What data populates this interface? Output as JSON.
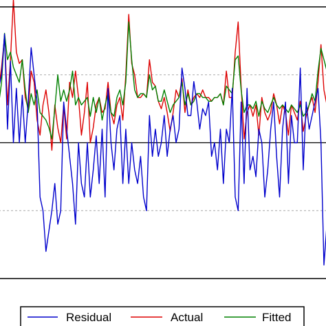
{
  "chart_data": {
    "type": "line",
    "title": "",
    "xlabel": "",
    "ylabel": "",
    "grid": false,
    "legend_position": "bottom",
    "zero_line": true,
    "reference_lines": true,
    "ylim_top": [
      -5.2,
      2.0
    ],
    "ylim_bottom": [
      -2.0,
      2.0
    ],
    "colors": {
      "residual": "#0000cc",
      "actual": "#dd0000",
      "fitted": "#008000"
    },
    "series": [
      {
        "name": "Actual",
        "panel": "top",
        "values": [
          -0.2,
          0.4,
          1.2,
          -0.6,
          0.6,
          2.2,
          0.8,
          0.5,
          0.6,
          -0.4,
          -0.7,
          0.3,
          0.0,
          -1.0,
          -1.4,
          -0.6,
          -0.2,
          -0.8,
          -1.8,
          -0.6,
          -1.2,
          -1.6,
          -0.6,
          -1.5,
          0.0,
          -0.4,
          0.3,
          -0.4,
          -1.4,
          -0.8,
          0.0,
          -1.6,
          -1.2,
          -0.6,
          -0.4,
          -0.8,
          -0.7,
          0.0,
          -0.8,
          -1.1,
          -0.6,
          -0.4,
          -1.0,
          0.2,
          1.8,
          0.5,
          0.2,
          -0.4,
          -0.4,
          -0.3,
          -0.4,
          0.6,
          0.0,
          -0.1,
          -0.5,
          -0.7,
          -0.4,
          -0.8,
          -1.3,
          -0.8,
          -0.2,
          -0.4,
          0.1,
          -0.8,
          -0.2,
          -0.6,
          -0.4,
          -0.3,
          -0.4,
          -0.2,
          -0.4,
          -0.4,
          -0.5,
          -0.4,
          -0.4,
          -0.3,
          -0.6,
          0.3,
          -0.4,
          -0.4,
          0.8,
          1.6,
          -0.1,
          -1.5,
          -0.8,
          -0.6,
          -0.9,
          -0.6,
          -1.4,
          -0.4,
          -0.8,
          -1.0,
          -0.8,
          -0.3,
          -0.6,
          -1.1,
          -0.6,
          -0.8,
          -1.4,
          -0.6,
          -0.8,
          -1.0,
          -0.5,
          -1.3,
          -0.9,
          -0.6,
          -0.4,
          -0.8,
          0.0,
          1.0,
          -0.2,
          -0.6
        ]
      },
      {
        "name": "Fitted",
        "panel": "top",
        "values": [
          -0.6,
          0.0,
          1.3,
          0.6,
          0.8,
          0.4,
          0.2,
          0.0,
          0.6,
          -0.2,
          -0.8,
          -0.3,
          -0.6,
          -0.2,
          -0.8,
          -0.9,
          -1.0,
          -1.2,
          -1.5,
          -0.7,
          0.2,
          -0.5,
          -0.2,
          -0.5,
          -0.2,
          0.3,
          -0.6,
          -0.4,
          -0.6,
          -0.5,
          -0.4,
          -0.9,
          -0.4,
          -0.8,
          -0.4,
          -1.0,
          -0.6,
          -0.3,
          -0.8,
          -0.9,
          -0.4,
          -0.2,
          -0.6,
          0.0,
          1.6,
          0.6,
          -0.2,
          -0.4,
          -0.3,
          -0.3,
          -0.4,
          0.2,
          -0.2,
          -0.1,
          -0.5,
          -0.5,
          -0.2,
          -0.5,
          -0.8,
          -0.6,
          -0.5,
          -0.4,
          0.0,
          -0.6,
          -0.3,
          -0.6,
          -0.5,
          -0.3,
          -0.3,
          -0.4,
          -0.4,
          -0.5,
          -0.5,
          -0.4,
          -0.4,
          -0.3,
          -0.6,
          -0.1,
          -0.2,
          -0.3,
          0.6,
          0.7,
          -0.2,
          -0.8,
          -0.6,
          -0.6,
          -0.7,
          -0.5,
          -0.9,
          -0.5,
          -0.7,
          -0.8,
          -0.6,
          -0.4,
          -0.6,
          -0.7,
          -0.6,
          -0.7,
          -0.8,
          -0.6,
          -0.7,
          -0.8,
          -0.6,
          -0.9,
          -0.8,
          -0.6,
          -0.3,
          -0.5,
          0.3,
          0.9,
          0.6,
          0.3
        ]
      },
      {
        "name": "Residual",
        "panel": "bottom",
        "values": [
          0.8,
          1.0,
          1.6,
          0.2,
          1.2,
          0.0,
          0.8,
          0.0,
          0.7,
          0.0,
          0.6,
          1.4,
          1.0,
          0.6,
          -0.8,
          -1.0,
          -1.6,
          -1.3,
          -1.0,
          -0.6,
          -1.2,
          -1.0,
          0.6,
          0.2,
          -0.2,
          -0.6,
          -1.2,
          0.0,
          -0.6,
          -0.8,
          0.0,
          -0.8,
          -0.4,
          0.1,
          -0.6,
          0.2,
          -0.8,
          0.8,
          0.0,
          -0.4,
          0.2,
          0.4,
          -0.6,
          0.2,
          -0.6,
          0.0,
          -0.4,
          -0.6,
          -0.2,
          -0.8,
          -1.0,
          0.4,
          -0.2,
          0.2,
          -0.2,
          0.0,
          0.4,
          -0.2,
          0.2,
          0.4,
          0.0,
          0.2,
          1.1,
          0.8,
          0.4,
          0.4,
          0.9,
          0.6,
          0.2,
          0.5,
          0.4,
          0.6,
          -0.2,
          0.0,
          -0.4,
          0.2,
          -0.6,
          0.2,
          0.0,
          0.8,
          -0.8,
          -1.0,
          0.6,
          -0.6,
          0.8,
          -0.4,
          -0.2,
          -0.5,
          0.2,
          0.0,
          -0.8,
          -0.4,
          0.2,
          0.6,
          -0.2,
          -0.8,
          0.2,
          0.6,
          -0.6,
          0.4,
          0.0,
          0.0,
          1.1,
          -0.4,
          0.6,
          0.2,
          0.4,
          0.6,
          0.8,
          0.0,
          -1.8,
          -1.2
        ]
      }
    ]
  },
  "legend": {
    "items": [
      {
        "label": "Residual",
        "color": "#0000cc"
      },
      {
        "label": "Actual",
        "color": "#dd0000"
      },
      {
        "label": "Fitted",
        "color": "#008000"
      }
    ]
  }
}
